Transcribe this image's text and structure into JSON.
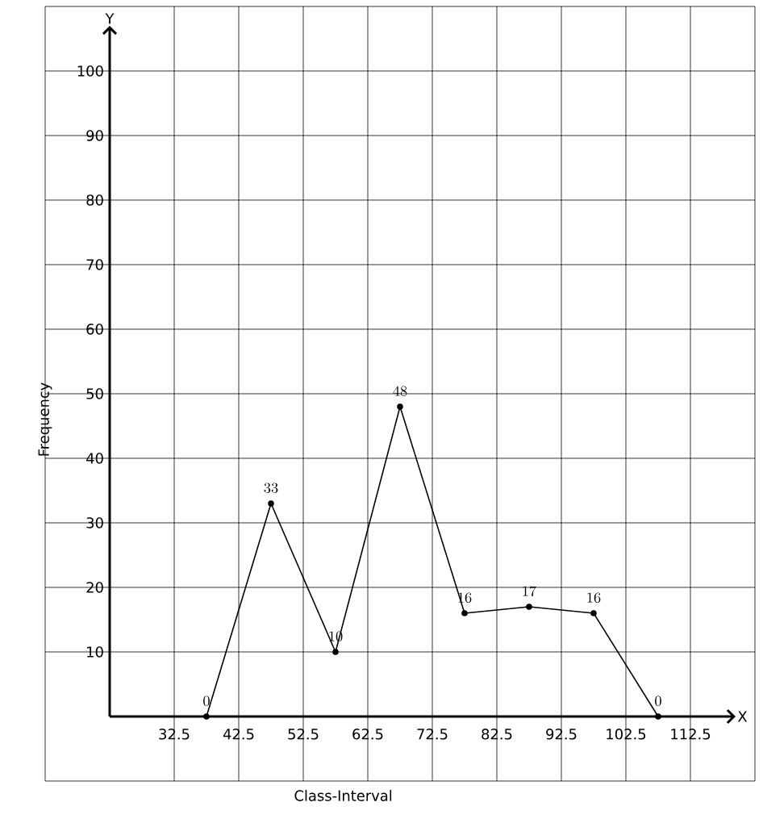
{
  "chart_data": {
    "type": "line",
    "xlabel": "Class-Interval",
    "ylabel": "Frequency",
    "x": [
      37.5,
      47.5,
      57.5,
      67.5,
      77.5,
      87.5,
      97.5,
      107.5
    ],
    "values": [
      0,
      33,
      10,
      48,
      16,
      17,
      16,
      0
    ],
    "color": "#000000",
    "marker": "circle",
    "line_style": "solid",
    "data_labels": true,
    "xlim": [
      12.5,
      122.5
    ],
    "ylim": [
      -10,
      110
    ],
    "xticks": [
      32.5,
      42.5,
      52.5,
      62.5,
      72.5,
      82.5,
      92.5,
      102.5,
      112.5
    ],
    "yticks": [
      10,
      20,
      30,
      40,
      50,
      60,
      70,
      80,
      90,
      100
    ],
    "grid": true,
    "annotations": [
      "Y",
      "X"
    ]
  }
}
